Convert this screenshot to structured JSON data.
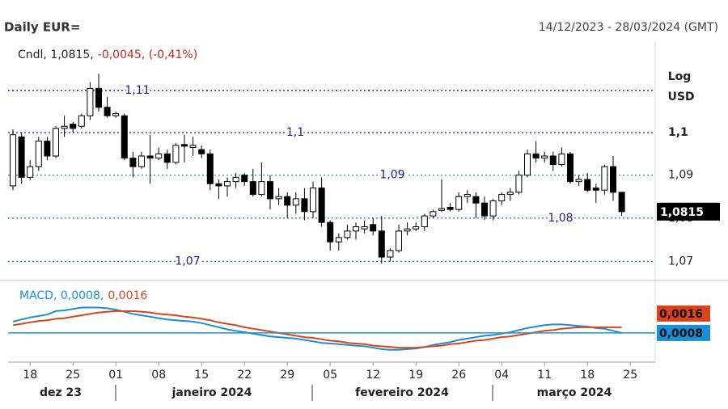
{
  "chart_data": [
    {
      "type": "candlestick",
      "title": "Daily EUR=",
      "subtitle": "14/12/2023 - 28/03/2024 (GMT)",
      "legend": [
        "Cndl, 1,0815,",
        "-0,0045, (-0,41%)"
      ],
      "scale_label": "Log",
      "ylabel": "USD",
      "log_scale": true,
      "grid": true,
      "ylim": [
        1.066,
        1.122
      ],
      "yticks": [
        {
          "value": 1.07,
          "label": "1,07"
        },
        {
          "value": 1.08,
          "label": "1,08"
        },
        {
          "value": 1.09,
          "label": "1,09"
        },
        {
          "value": 1.1,
          "label": "1,1"
        },
        {
          "value": 1.11,
          "label": "1,11"
        }
      ],
      "last_price": {
        "value": 1.0815,
        "label": "1,0815"
      },
      "up_color": "#ffffff",
      "down_color": "#000000",
      "months": [
        "dez 23",
        "janeiro 2024",
        "fevereiro 2024",
        "março 2024"
      ],
      "categories": [
        null,
        null,
        "18",
        null,
        null,
        null,
        null,
        "25",
        null,
        null,
        null,
        null,
        "01",
        null,
        null,
        null,
        null,
        "08",
        null,
        null,
        null,
        null,
        "15",
        null,
        null,
        null,
        null,
        "22",
        null,
        null,
        null,
        null,
        "29",
        null,
        null,
        null,
        null,
        "05",
        null,
        null,
        null,
        null,
        "12",
        null,
        null,
        null,
        null,
        "19",
        null,
        null,
        null,
        null,
        "26",
        null,
        null,
        null,
        null,
        "04",
        null,
        null,
        null,
        null,
        "11",
        null,
        null,
        null,
        null,
        "18",
        null,
        null,
        null,
        null,
        "25"
      ],
      "open": [
        1.0875,
        1.099,
        1.0895,
        1.092,
        1.098,
        1.0945,
        1.101,
        1.102,
        1.1015,
        1.104,
        1.1105,
        1.106,
        1.104,
        1.104,
        1.094,
        1.092,
        1.0945,
        1.094,
        1.095,
        1.093,
        1.0972,
        1.0965,
        1.096,
        1.095,
        1.088,
        1.0875,
        1.0885,
        1.09,
        1.0885,
        1.0855,
        1.0885,
        1.0845,
        1.085,
        1.083,
        1.0845,
        1.0815,
        1.087,
        1.079,
        1.0745,
        1.0755,
        1.077,
        1.0775,
        1.0785,
        1.077,
        1.071,
        1.0725,
        1.077,
        1.0775,
        1.078,
        1.0805,
        1.0818,
        1.0825,
        1.082,
        1.085,
        1.085,
        1.0835,
        1.0805,
        1.084,
        1.0855,
        1.086,
        1.09,
        1.095,
        1.094,
        1.0945,
        1.0925,
        1.095,
        1.0885,
        1.089,
        1.087,
        1.0865,
        1.092,
        1.086,
        null
      ],
      "high": [
        1.1008,
        1.1,
        1.0935,
        1.099,
        1.099,
        1.1015,
        1.104,
        1.1025,
        1.1045,
        1.112,
        1.114,
        1.1085,
        1.105,
        1.1045,
        1.0955,
        1.0955,
        1.0995,
        1.0965,
        1.096,
        1.0975,
        1.0995,
        1.099,
        1.097,
        1.096,
        1.089,
        1.0895,
        1.0905,
        1.0905,
        1.0915,
        1.093,
        1.09,
        1.087,
        1.086,
        1.086,
        1.087,
        1.0885,
        1.0895,
        1.0795,
        1.0765,
        1.0785,
        1.079,
        1.0795,
        1.08,
        1.0805,
        1.073,
        1.0785,
        1.079,
        1.079,
        1.081,
        1.082,
        1.089,
        1.0835,
        1.086,
        1.0865,
        1.086,
        1.085,
        1.0845,
        1.086,
        1.087,
        1.091,
        1.096,
        1.098,
        1.0955,
        1.0955,
        1.0965,
        1.0955,
        1.09,
        1.0905,
        1.088,
        1.0925,
        1.0945,
        1.086,
        null
      ],
      "low": [
        1.0865,
        1.088,
        1.0888,
        1.091,
        1.0935,
        1.094,
        1.099,
        1.1,
        1.101,
        1.103,
        1.105,
        1.1035,
        1.1035,
        1.0935,
        1.0895,
        1.0915,
        1.088,
        1.0935,
        1.0915,
        1.0925,
        1.093,
        1.0945,
        1.094,
        1.0865,
        1.0845,
        1.085,
        1.087,
        1.0875,
        1.085,
        1.085,
        1.082,
        1.083,
        1.08,
        1.081,
        1.0795,
        1.08,
        1.078,
        1.0725,
        1.0725,
        1.075,
        1.075,
        1.0765,
        1.076,
        1.0695,
        1.07,
        1.072,
        1.076,
        1.077,
        1.077,
        1.08,
        1.0815,
        1.0815,
        1.0815,
        1.0835,
        1.08,
        1.0795,
        1.0795,
        1.083,
        1.084,
        1.0855,
        1.0895,
        1.093,
        1.093,
        1.091,
        1.092,
        1.088,
        1.0875,
        1.086,
        1.0835,
        1.0855,
        1.084,
        1.0805,
        null
      ],
      "close": [
        1.0995,
        1.0895,
        1.092,
        1.098,
        1.0945,
        1.101,
        1.1015,
        1.101,
        1.104,
        1.1105,
        1.106,
        1.104,
        1.1045,
        1.094,
        1.092,
        1.0945,
        1.094,
        1.095,
        1.093,
        1.097,
        1.0968,
        1.097,
        1.095,
        1.088,
        1.0875,
        1.0885,
        1.0895,
        1.0885,
        1.0855,
        1.0885,
        1.0845,
        1.085,
        1.083,
        1.0845,
        1.0815,
        1.087,
        1.079,
        1.0745,
        1.0755,
        1.077,
        1.078,
        1.078,
        1.077,
        1.071,
        1.0725,
        1.077,
        1.0775,
        1.078,
        1.0805,
        1.0815,
        1.0822,
        1.082,
        1.085,
        1.0855,
        1.0835,
        1.0805,
        1.084,
        1.0855,
        1.086,
        1.09,
        1.095,
        1.094,
        1.0945,
        1.0925,
        1.095,
        1.0885,
        1.089,
        1.0865,
        1.0865,
        1.092,
        1.086,
        1.0815,
        null
      ]
    },
    {
      "type": "line",
      "legend": [
        "MACD, 0,0008,",
        "0,0016"
      ],
      "ylabel": "USD",
      "ylim": [
        -0.003,
        0.0079
      ],
      "series": [
        {
          "color": "#1b8fd6",
          "last_label": "0,0008",
          "values": [
            0.0024,
            0.0027,
            0.003,
            0.0032,
            0.0034,
            0.0039,
            0.004,
            0.0042,
            0.0044,
            0.0044,
            0.0044,
            0.0043,
            0.0041,
            0.0038,
            0.0035,
            0.0033,
            0.0031,
            0.0029,
            0.0027,
            0.0026,
            0.0025,
            0.0024,
            0.0022,
            0.0019,
            0.0016,
            0.0013,
            0.0011,
            0.0009,
            0.0007,
            0.0005,
            0.0003,
            0.0002,
            0.0001,
            0.0,
            -0.0002,
            -0.0004,
            -0.0006,
            -0.0007,
            -0.0008,
            -0.0009,
            -0.001,
            -0.0011,
            -0.0013,
            -0.0015,
            -0.0016,
            -0.0016,
            -0.0015,
            -0.0014,
            -0.0012,
            -0.0009,
            -0.0007,
            -0.0005,
            -0.0002,
            0.0,
            0.0002,
            0.0004,
            0.0005,
            0.0007,
            0.0009,
            0.0012,
            0.0015,
            0.0017,
            0.0019,
            0.002,
            0.002,
            0.0019,
            0.0018,
            0.0017,
            0.0015,
            0.0014,
            0.0011,
            0.0008,
            null
          ]
        },
        {
          "color": "#d9441c",
          "last_label": "0,0016",
          "values": [
            0.0019,
            0.0021,
            0.0023,
            0.0025,
            0.0026,
            0.0028,
            0.0029,
            0.0031,
            0.0033,
            0.0035,
            0.0037,
            0.0038,
            0.0039,
            0.0039,
            0.0039,
            0.0038,
            0.0037,
            0.0035,
            0.0034,
            0.0033,
            0.0031,
            0.003,
            0.0028,
            0.0026,
            0.0023,
            0.0021,
            0.0019,
            0.0016,
            0.0014,
            0.0012,
            0.001,
            0.0008,
            0.0006,
            0.0004,
            0.0002,
            0.0001,
            -0.0001,
            -0.0003,
            -0.0004,
            -0.0006,
            -0.0007,
            -0.0008,
            -0.001,
            -0.0011,
            -0.0012,
            -0.0013,
            -0.0013,
            -0.0013,
            -0.0012,
            -0.0011,
            -0.001,
            -0.0008,
            -0.0007,
            -0.0005,
            -0.0003,
            -0.0002,
            0.0,
            0.0002,
            0.0003,
            0.0005,
            0.0007,
            0.0009,
            0.0011,
            0.0012,
            0.0014,
            0.0015,
            0.0016,
            0.0016,
            0.0016,
            0.0016,
            0.0016,
            0.0016,
            null
          ]
        }
      ]
    }
  ]
}
